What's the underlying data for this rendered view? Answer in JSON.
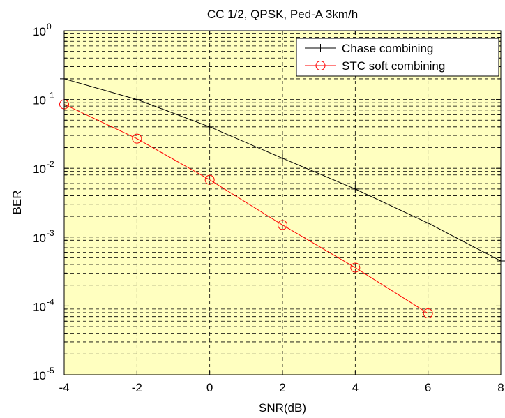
{
  "chart_data": {
    "type": "line",
    "title": "CC 1/2, QPSK, Ped-A 3km/h",
    "xlabel": "SNR(dB)",
    "ylabel": "BER",
    "xlim": [
      -4,
      8
    ],
    "ylim": [
      1e-05,
      1
    ],
    "yscale": "log",
    "grid": true,
    "legend_position": "top-right",
    "x_ticks": [
      "-4",
      "-2",
      "0",
      "2",
      "4",
      "6",
      "8"
    ],
    "y_tick_exponents": [
      "0",
      "-1",
      "-2",
      "-3",
      "-4",
      "-5"
    ],
    "y_tick_base": "10",
    "background_color": "#ffffc0",
    "series": [
      {
        "name": "Chase combining",
        "color": "#000000",
        "marker": "plus",
        "x": [
          -4,
          -2,
          0,
          2,
          4,
          6,
          8
        ],
        "y": [
          0.2,
          0.1,
          0.04,
          0.014,
          0.005,
          0.0016,
          0.00045
        ]
      },
      {
        "name": "STC soft combining",
        "color": "#ff0000",
        "marker": "circle",
        "x": [
          -4,
          -2,
          0,
          2,
          4,
          6
        ],
        "y": [
          0.085,
          0.027,
          0.0068,
          0.0015,
          0.00036,
          7.8e-05
        ]
      }
    ]
  }
}
